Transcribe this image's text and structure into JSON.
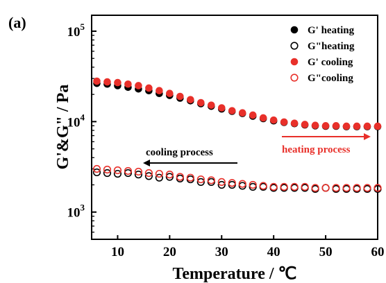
{
  "panel_label": "(a)",
  "chart_data": {
    "type": "scatter",
    "xlabel": "Temperature / ℃",
    "ylabel": "G'&G\" / Pa",
    "xlim": [
      5,
      60
    ],
    "ylim": [
      500,
      150000
    ],
    "yscale": "log",
    "xticks": [
      10,
      20,
      30,
      40,
      50,
      60
    ],
    "yticks": [
      {
        "value": 1000,
        "base": "10",
        "exp": "3"
      },
      {
        "value": 10000,
        "base": "10",
        "exp": "4"
      },
      {
        "value": 100000,
        "base": "10",
        "exp": "5"
      }
    ],
    "grid": false,
    "legend_position": "top-right",
    "x": [
      6,
      8,
      10,
      12,
      14,
      16,
      18,
      20,
      22,
      24,
      26,
      28,
      30,
      32,
      34,
      36,
      38,
      40,
      42,
      44,
      46,
      48,
      50,
      52,
      54,
      56,
      58,
      60
    ],
    "series": [
      {
        "name": "G' heating",
        "color": "#000000",
        "marker": "filled",
        "values": [
          26500,
          26000,
          25000,
          24000,
          23000,
          22000,
          20500,
          19500,
          18200,
          17000,
          15800,
          14800,
          13800,
          13000,
          12300,
          11500,
          10800,
          10200,
          9800,
          9500,
          9200,
          9000,
          8900,
          8900,
          8800,
          8800,
          8800,
          8800
        ]
      },
      {
        "name": "G\"heating",
        "color": "#000000",
        "marker": "open",
        "values": [
          2750,
          2700,
          2650,
          2700,
          2600,
          2500,
          2400,
          2450,
          2350,
          2300,
          2150,
          2150,
          2000,
          2000,
          1950,
          1900,
          1900,
          1850,
          1850,
          1850,
          1850,
          1800,
          1850,
          1800,
          1800,
          1800,
          1800,
          1800
        ]
      },
      {
        "name": "G' cooling",
        "color": "#e8302a",
        "marker": "filled",
        "values": [
          28000,
          27500,
          27000,
          26000,
          25000,
          23500,
          22000,
          20500,
          19000,
          17500,
          16200,
          15200,
          14200,
          13200,
          12500,
          11800,
          11000,
          10400,
          9900,
          9600,
          9300,
          9100,
          9000,
          9000,
          8900,
          8900,
          8900,
          8900
        ]
      },
      {
        "name": "G\"cooling",
        "color": "#e8302a",
        "marker": "open",
        "values": [
          3000,
          2950,
          2900,
          2850,
          2800,
          2700,
          2650,
          2600,
          2450,
          2400,
          2300,
          2250,
          2150,
          2100,
          2050,
          2000,
          1950,
          1900,
          1900,
          1900,
          1900,
          1850,
          1850,
          1850,
          1850,
          1850,
          1850,
          1850
        ]
      }
    ],
    "annotations": [
      {
        "text": "cooling process",
        "color": "#000000",
        "arrow": "left"
      },
      {
        "text": "heating process",
        "color": "#e8302a",
        "arrow": "right"
      }
    ]
  }
}
